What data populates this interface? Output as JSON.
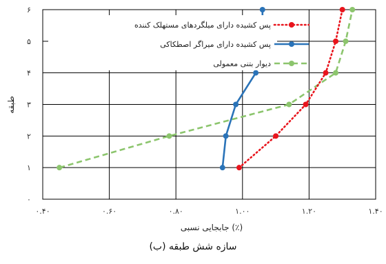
{
  "chart_data": {
    "type": "line",
    "xlabel": "جابجایی نسبی (٪)",
    "ylabel": "طبقه",
    "caption": "(ب) سازه شش طبقه",
    "xlim": [
      0.4,
      1.4
    ],
    "ylim": [
      0,
      6
    ],
    "x_ticks": [
      0.4,
      0.6,
      0.8,
      1.0,
      1.2,
      1.4
    ],
    "x_tick_labels": [
      "۰.۴۰",
      "۰.۶۰",
      "۰.۸۰",
      "۱.۰۰",
      "۱.۲۰",
      "۱.۴۰"
    ],
    "y_ticks": [
      0,
      1,
      2,
      3,
      4,
      5,
      6
    ],
    "y_tick_labels": [
      "۰",
      "۱",
      "۲",
      "۳",
      "۴",
      "۵",
      "۶"
    ],
    "grid": true,
    "legend_position": "top-left",
    "series": [
      {
        "name": "پس کشیده دارای میلگردهای مستهلک کننده",
        "color": "#e8141c",
        "style": "dotted",
        "x": [
          0.99,
          1.1,
          1.19,
          1.25,
          1.28,
          1.3
        ],
        "y": [
          1,
          2,
          3,
          4,
          5,
          6
        ]
      },
      {
        "name": "پس کشیده دارای میراگر اصطکاکی",
        "color": "#2a73b8",
        "style": "solid",
        "x": [
          0.94,
          0.95,
          0.98,
          1.04,
          1.06,
          1.06
        ],
        "y": [
          1,
          2,
          3,
          4,
          5,
          6
        ]
      },
      {
        "name": "دیوار بتنی معمولی",
        "color": "#8cc56d",
        "style": "dashed",
        "x": [
          0.45,
          0.78,
          1.14,
          1.28,
          1.31,
          1.33
        ],
        "y": [
          1,
          2,
          3,
          4,
          5,
          6
        ]
      }
    ]
  }
}
